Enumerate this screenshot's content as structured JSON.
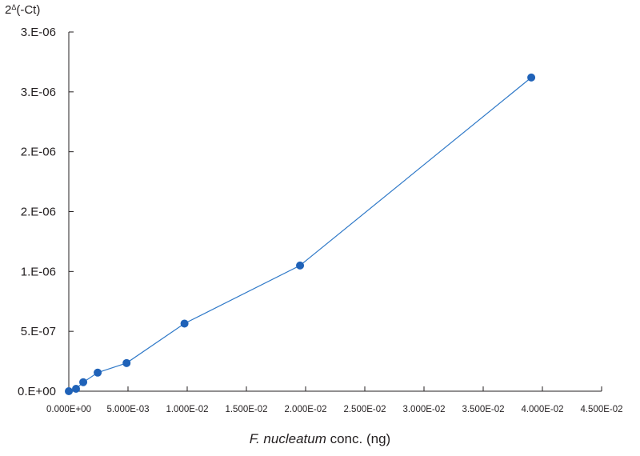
{
  "chart_data": {
    "type": "scatter",
    "title": "",
    "ylabel": {
      "base": "2",
      "exponent": "Δ",
      "rest": "(-Ct)"
    },
    "xlabel": {
      "italic": "F. nucleatum",
      "rest": " conc. (ng)"
    },
    "xlim": [
      0,
      0.045
    ],
    "ylim": [
      0,
      3e-06
    ],
    "xticks": [
      0,
      0.005,
      0.01,
      0.015,
      0.02,
      0.025,
      0.03,
      0.035,
      0.04,
      0.045
    ],
    "xtick_labels": [
      "0.000E+00",
      "5.000E-03",
      "1.000E-02",
      "1.500E-02",
      "2.000E-02",
      "2.500E-02",
      "3.000E-02",
      "3.500E-02",
      "4.000E-02",
      "4.500E-02"
    ],
    "yticks": [
      0,
      5e-07,
      1e-06,
      1.5e-06,
      2e-06,
      2.5e-06,
      3e-06
    ],
    "ytick_labels": [
      "0.E+00",
      "5.E-07",
      "1.E-06",
      "2.E-06",
      "2.E-06",
      "3.E-06",
      "3.E-06"
    ],
    "grid": false,
    "legend": "none",
    "series": [
      {
        "x": [
          0.0,
          0.00061,
          0.00122,
          0.00244,
          0.00488,
          0.00977,
          0.01953,
          0.03906
        ],
        "y": [
          0.0,
          2e-08,
          7.5e-08,
          1.55e-07,
          2.35e-07,
          5.65e-07,
          1.05e-06,
          2.62e-06
        ],
        "color": "#1f62b8",
        "line_color": "#2f79c8"
      }
    ]
  }
}
